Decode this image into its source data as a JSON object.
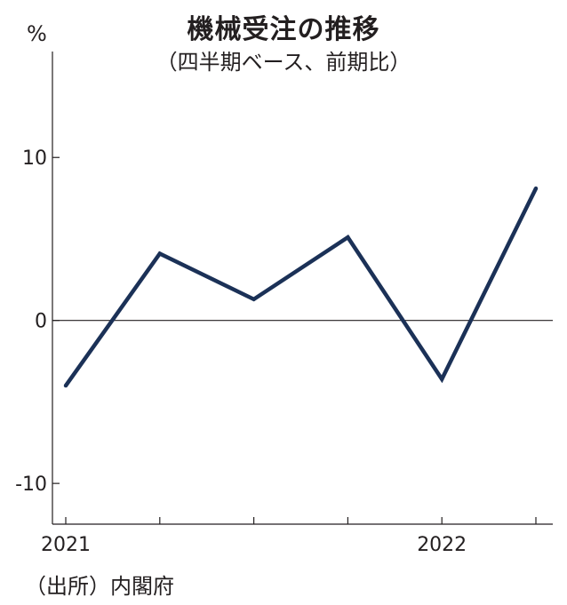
{
  "chart_data": {
    "type": "line",
    "title": "機械受注の推移",
    "subtitle": "（四半期ベース、前期比）",
    "ylabel": "%",
    "ylim": [
      -12.5,
      16.5
    ],
    "yticks": [
      10,
      0,
      -10
    ],
    "ytick_labels": [
      "10",
      "0",
      "-10"
    ],
    "x": [
      "2021 Q1",
      "2021 Q2",
      "2021 Q3",
      "2021 Q4",
      "2022 Q1",
      "2022 Q2"
    ],
    "xtick_labels": [
      "2021",
      "",
      "",
      "",
      "2022",
      ""
    ],
    "series": [
      {
        "values": [
          -4.0,
          4.1,
          1.3,
          5.1,
          -3.6,
          8.1
        ],
        "color": "#1b3157"
      }
    ],
    "zero_line": true,
    "grid": false,
    "source": "（出所）内閣府"
  }
}
